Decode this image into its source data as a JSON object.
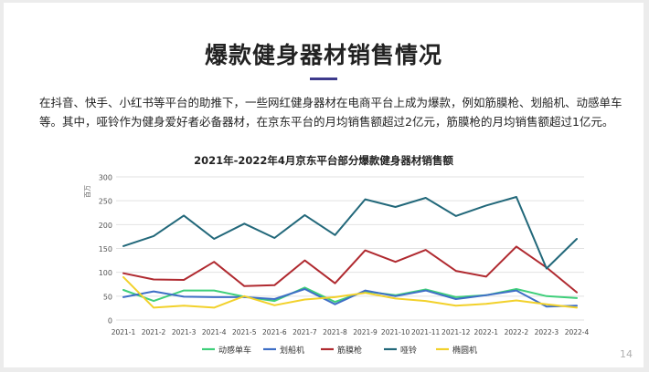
{
  "slide": {
    "title": "爆款健身器材销售情况",
    "intro": "在抖音、快手、小红书等平台的助推下，一些网红健身器材在电商平台上成为爆款，例如筋膜枪、划船机、动感单车等。其中，哑铃作为健身爱好者必备器材，在京东平台的月均销售额超过2亿元，筋膜枪的月均销售额超过1亿元。",
    "page_number": "14",
    "accent_color": "#3d3a8c"
  },
  "chart_data": {
    "type": "line",
    "title": "2021年-2022年4月京东平台部分爆款健身器材销售额",
    "ylabel": "百万",
    "xlabel": "",
    "ylim": [
      0,
      300
    ],
    "yticks": [
      0,
      50,
      100,
      150,
      200,
      250,
      300
    ],
    "grid": true,
    "legend_position": "bottom",
    "categories": [
      "2021-1",
      "2021-2",
      "2021-3",
      "2021-4",
      "2021-5",
      "2021-6",
      "2021-7",
      "2021-8",
      "2021-9",
      "2021-10",
      "2021-11",
      "2021-12",
      "2022-1",
      "2022-2",
      "2022-3",
      "2022-4"
    ],
    "series": [
      {
        "name": "动感单车",
        "color": "#3fcf7a",
        "values": [
          63,
          40,
          62,
          62,
          49,
          40,
          68,
          38,
          60,
          52,
          64,
          48,
          52,
          65,
          50,
          46
        ]
      },
      {
        "name": "划船机",
        "color": "#3e6fc6",
        "values": [
          48,
          60,
          49,
          48,
          48,
          44,
          65,
          33,
          62,
          50,
          62,
          44,
          52,
          62,
          28,
          30
        ]
      },
      {
        "name": "筋膜枪",
        "color": "#b02a30",
        "values": [
          98,
          85,
          84,
          122,
          71,
          73,
          125,
          77,
          146,
          122,
          147,
          103,
          91,
          154,
          110,
          58
        ]
      },
      {
        "name": "哑铃",
        "color": "#22687a",
        "values": [
          155,
          176,
          219,
          170,
          202,
          172,
          220,
          178,
          253,
          237,
          256,
          218,
          240,
          258,
          108,
          170
        ]
      },
      {
        "name": "椭圆机",
        "color": "#f2d12b",
        "values": [
          90,
          26,
          30,
          26,
          50,
          31,
          43,
          48,
          57,
          45,
          40,
          30,
          34,
          41,
          33,
          26
        ]
      }
    ]
  }
}
